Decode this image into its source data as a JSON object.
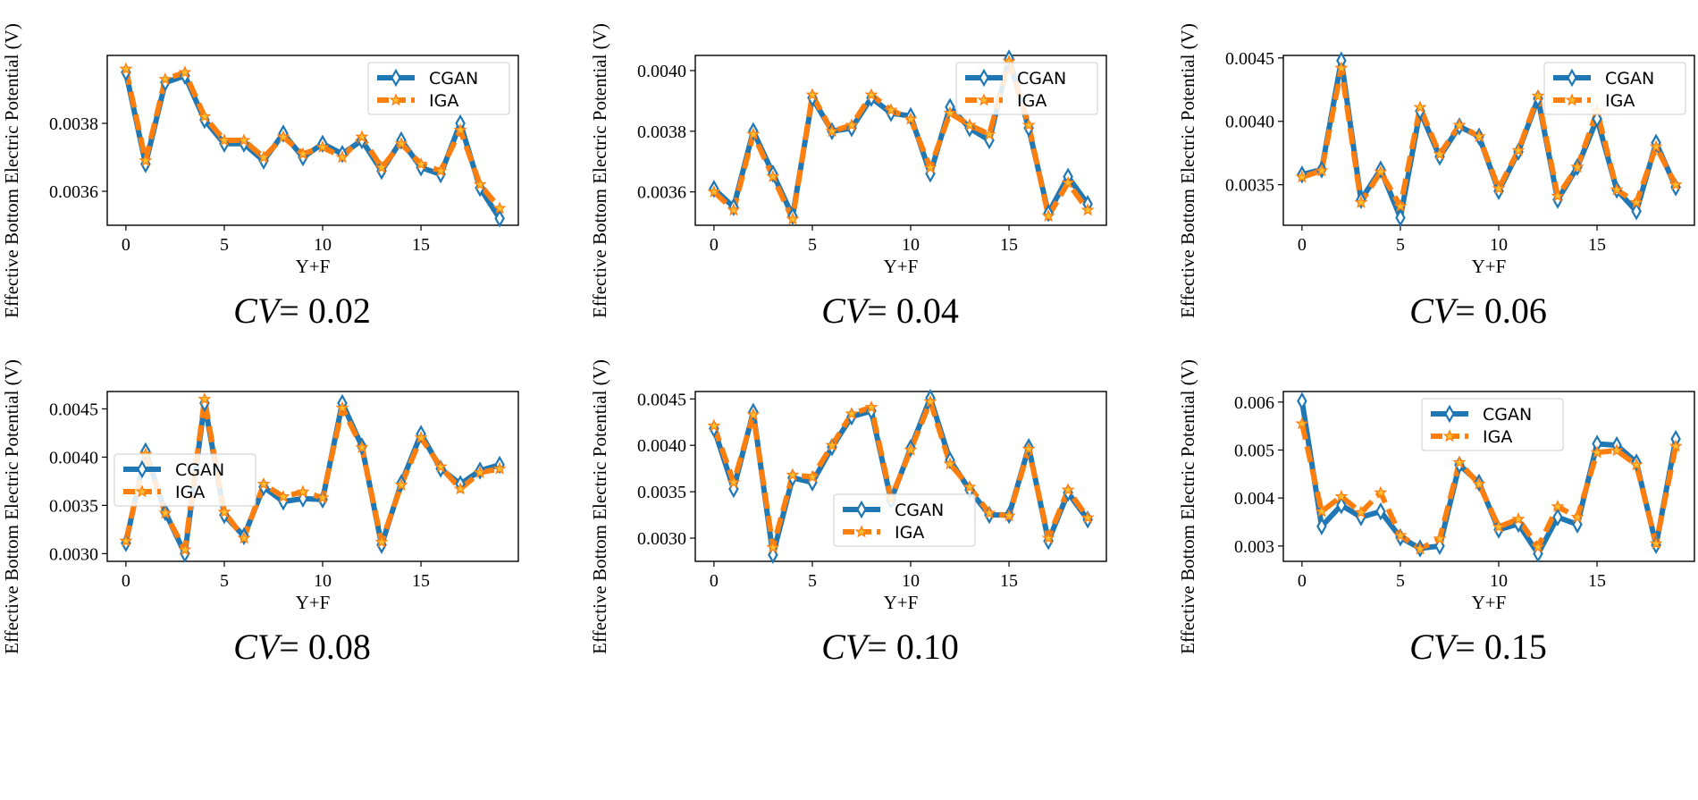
{
  "colors": {
    "cgan": "#1f77b4",
    "iga": "#ff7f0e"
  },
  "legend_labels": [
    "CGAN",
    "IGA"
  ],
  "chart_data": [
    {
      "type": "line",
      "caption_var": "CV",
      "caption_eq": "= 0.02",
      "xlabel": "Y+F",
      "ylabel": "Effective Bottom Electric Potential (V)",
      "xlim": [
        -0.95,
        19.95
      ],
      "ylim": [
        0.0035,
        0.004
      ],
      "xticks": [
        0,
        5,
        10,
        15
      ],
      "xtick_labels": [
        "0",
        "5",
        "10",
        "15"
      ],
      "yticks": [
        0.0036,
        0.0038
      ],
      "ytick_labels": [
        "0.0036",
        "0.0038"
      ],
      "legend_position": "top-right",
      "x": [
        0,
        1,
        2,
        3,
        4,
        5,
        6,
        7,
        8,
        9,
        10,
        11,
        12,
        13,
        14,
        15,
        16,
        17,
        18,
        19
      ],
      "series": [
        {
          "name": "CGAN",
          "values": [
            0.00395,
            0.00368,
            0.00392,
            0.00394,
            0.00381,
            0.00374,
            0.00374,
            0.00369,
            0.00377,
            0.0037,
            0.00374,
            0.00371,
            0.00375,
            0.00366,
            0.00375,
            0.00367,
            0.00365,
            0.0038,
            0.00361,
            0.00352
          ]
        },
        {
          "name": "IGA",
          "values": [
            0.00396,
            0.00369,
            0.00393,
            0.00395,
            0.00382,
            0.00375,
            0.00375,
            0.0037,
            0.00376,
            0.00371,
            0.00373,
            0.0037,
            0.00376,
            0.00367,
            0.00374,
            0.00368,
            0.00366,
            0.00378,
            0.00362,
            0.00355
          ]
        }
      ]
    },
    {
      "type": "line",
      "caption_var": "CV",
      "caption_eq": "= 0.04",
      "xlabel": "Y+F",
      "ylabel": "Effective Bottom Electric Potential (V)",
      "xlim": [
        -0.95,
        19.95
      ],
      "ylim": [
        0.00349,
        0.00405
      ],
      "xticks": [
        0,
        5,
        10,
        15
      ],
      "xtick_labels": [
        "0",
        "5",
        "10",
        "15"
      ],
      "yticks": [
        0.0036,
        0.0038,
        0.004
      ],
      "ytick_labels": [
        "0.0036",
        "0.0038",
        "0.0040"
      ],
      "legend_position": "top-right",
      "x": [
        0,
        1,
        2,
        3,
        4,
        5,
        6,
        7,
        8,
        9,
        10,
        11,
        12,
        13,
        14,
        15,
        16,
        17,
        18,
        19
      ],
      "series": [
        {
          "name": "CGAN",
          "values": [
            0.00361,
            0.00355,
            0.0038,
            0.00366,
            0.00352,
            0.00391,
            0.0038,
            0.00381,
            0.00391,
            0.00386,
            0.00385,
            0.00366,
            0.00388,
            0.00381,
            0.00377,
            0.00404,
            0.00381,
            0.00353,
            0.00365,
            0.00356
          ]
        },
        {
          "name": "IGA",
          "values": [
            0.0036,
            0.00354,
            0.00379,
            0.00365,
            0.00351,
            0.00392,
            0.0038,
            0.00382,
            0.00392,
            0.00387,
            0.00384,
            0.00368,
            0.00386,
            0.00382,
            0.00379,
            0.00403,
            0.00382,
            0.00352,
            0.00363,
            0.00354
          ]
        }
      ]
    },
    {
      "type": "line",
      "caption_var": "CV",
      "caption_eq": "= 0.06",
      "xlabel": "Y+F",
      "ylabel": "Effective Bottom Electric Potential (V)",
      "xlim": [
        -0.95,
        19.95
      ],
      "ylim": [
        0.00318,
        0.00452
      ],
      "xticks": [
        0,
        5,
        10,
        15
      ],
      "xtick_labels": [
        "0",
        "5",
        "10",
        "15"
      ],
      "yticks": [
        0.0035,
        0.004,
        0.0045
      ],
      "ytick_labels": [
        "0.0035",
        "0.0040",
        "0.0045"
      ],
      "legend_position": "top-right",
      "x": [
        0,
        1,
        2,
        3,
        4,
        5,
        6,
        7,
        8,
        9,
        10,
        11,
        12,
        13,
        14,
        15,
        16,
        17,
        18,
        19
      ],
      "series": [
        {
          "name": "CGAN",
          "values": [
            0.00358,
            0.00362,
            0.00448,
            0.00338,
            0.00362,
            0.00324,
            0.00408,
            0.00372,
            0.00396,
            0.00388,
            0.00345,
            0.00376,
            0.00418,
            0.00338,
            0.00364,
            0.00402,
            0.00346,
            0.00329,
            0.00383,
            0.00348
          ]
        },
        {
          "name": "IGA",
          "values": [
            0.00356,
            0.00361,
            0.00442,
            0.00336,
            0.0036,
            0.00333,
            0.00411,
            0.00374,
            0.00397,
            0.00388,
            0.00347,
            0.00377,
            0.0042,
            0.00341,
            0.00364,
            0.00408,
            0.00346,
            0.00336,
            0.0038,
            0.0035
          ]
        }
      ]
    },
    {
      "type": "line",
      "caption_var": "CV",
      "caption_eq": "= 0.08",
      "xlabel": "Y+F",
      "ylabel": "Effective Bottom Electric Potential (V)",
      "xlim": [
        -0.95,
        19.95
      ],
      "ylim": [
        0.00292,
        0.00468
      ],
      "xticks": [
        0,
        5,
        10,
        15
      ],
      "xtick_labels": [
        "0",
        "5",
        "10",
        "15"
      ],
      "yticks": [
        0.003,
        0.0035,
        0.004,
        0.0045
      ],
      "ytick_labels": [
        "0.0030",
        "0.0035",
        "0.0040",
        "0.0045"
      ],
      "legend_position": "middle-left",
      "x": [
        0,
        1,
        2,
        3,
        4,
        5,
        6,
        7,
        8,
        9,
        10,
        11,
        12,
        13,
        14,
        15,
        16,
        17,
        18,
        19
      ],
      "series": [
        {
          "name": "CGAN",
          "values": [
            0.00311,
            0.00406,
            0.00343,
            0.003,
            0.00456,
            0.0034,
            0.00318,
            0.00369,
            0.00354,
            0.00357,
            0.00356,
            0.00456,
            0.00411,
            0.00309,
            0.00373,
            0.00424,
            0.00388,
            0.00372,
            0.00386,
            0.00392
          ]
        },
        {
          "name": "IGA",
          "values": [
            0.00313,
            0.00403,
            0.00342,
            0.00304,
            0.0046,
            0.00343,
            0.00316,
            0.00372,
            0.00359,
            0.00364,
            0.00358,
            0.00451,
            0.0041,
            0.00312,
            0.00371,
            0.0042,
            0.0039,
            0.00367,
            0.00384,
            0.00388
          ]
        }
      ]
    },
    {
      "type": "line",
      "caption_var": "CV",
      "caption_eq": "= 0.10",
      "xlabel": "Y+F",
      "ylabel": "Effective Bottom Electric Potential (V)",
      "xlim": [
        -0.95,
        19.95
      ],
      "ylim": [
        0.00275,
        0.00458
      ],
      "xticks": [
        0,
        5,
        10,
        15
      ],
      "xtick_labels": [
        "0",
        "5",
        "10",
        "15"
      ],
      "yticks": [
        0.003,
        0.0035,
        0.004,
        0.0045
      ],
      "ytick_labels": [
        "0.0030",
        "0.0035",
        "0.0040",
        "0.0045"
      ],
      "legend_position": "bottom-center",
      "x": [
        0,
        1,
        2,
        3,
        4,
        5,
        6,
        7,
        8,
        9,
        10,
        11,
        12,
        13,
        14,
        15,
        16,
        17,
        18,
        19
      ],
      "series": [
        {
          "name": "CGAN",
          "values": [
            0.00418,
            0.00353,
            0.00436,
            0.00282,
            0.00365,
            0.0036,
            0.00398,
            0.00431,
            0.00437,
            0.00341,
            0.00397,
            0.00451,
            0.00384,
            0.00352,
            0.00325,
            0.00325,
            0.00398,
            0.00297,
            0.00349,
            0.0032
          ]
        },
        {
          "name": "IGA",
          "values": [
            0.00421,
            0.0036,
            0.00433,
            0.0029,
            0.00368,
            0.00366,
            0.004,
            0.00434,
            0.00441,
            0.00343,
            0.00395,
            0.00447,
            0.0038,
            0.00355,
            0.00327,
            0.00324,
            0.00396,
            0.003,
            0.00352,
            0.00322
          ]
        }
      ]
    },
    {
      "type": "line",
      "caption_var": "CV",
      "caption_eq": "= 0.15",
      "xlabel": "Y+F",
      "ylabel": "Effective Bottom Electric Potential (V)",
      "xlim": [
        -0.95,
        19.95
      ],
      "ylim": [
        0.00268,
        0.00622
      ],
      "xticks": [
        0,
        5,
        10,
        15
      ],
      "xtick_labels": [
        "0",
        "5",
        "10",
        "15"
      ],
      "yticks": [
        0.003,
        0.004,
        0.005,
        0.006
      ],
      "ytick_labels": [
        "0.003",
        "0.004",
        "0.005",
        "0.006"
      ],
      "legend_position": "top-center",
      "x": [
        0,
        1,
        2,
        3,
        4,
        5,
        6,
        7,
        8,
        9,
        10,
        11,
        12,
        13,
        14,
        15,
        16,
        17,
        18,
        19
      ],
      "series": [
        {
          "name": "CGAN",
          "values": [
            0.00602,
            0.00341,
            0.00385,
            0.0036,
            0.00372,
            0.00318,
            0.00295,
            0.003,
            0.00469,
            0.00432,
            0.00334,
            0.00346,
            0.00284,
            0.0036,
            0.00345,
            0.00513,
            0.0051,
            0.00474,
            0.00302,
            0.00523
          ]
        },
        {
          "name": "IGA",
          "values": [
            0.00555,
            0.00372,
            0.00403,
            0.0037,
            0.00411,
            0.00322,
            0.00294,
            0.00315,
            0.00474,
            0.00429,
            0.0034,
            0.00356,
            0.00298,
            0.00382,
            0.0036,
            0.00495,
            0.00499,
            0.00469,
            0.00305,
            0.00508
          ]
        }
      ]
    }
  ]
}
